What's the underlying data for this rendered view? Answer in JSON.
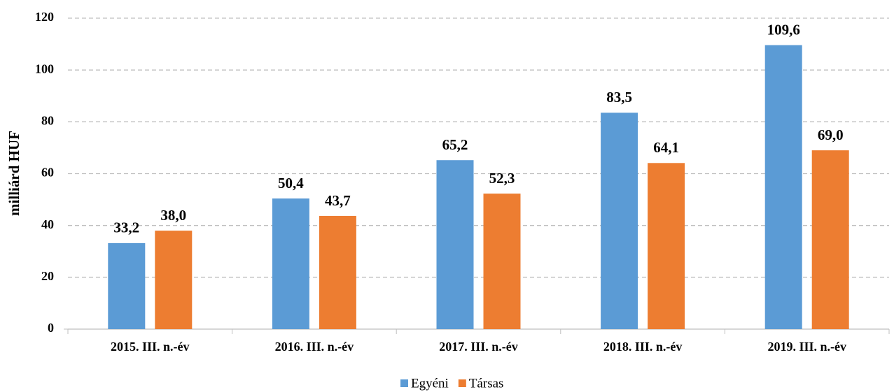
{
  "chart_data": {
    "type": "bar",
    "y_label": "milliárd HUF",
    "categories": [
      "2015. III. n.-év",
      "2016. III. n.-év",
      "2017. III. n.-év",
      "2018. III. n.-év",
      "2019. III. n.-év"
    ],
    "series": [
      {
        "name": "Egyéni",
        "color": "#5b9bd5",
        "values": [
          33.2,
          50.4,
          65.2,
          83.5,
          109.6
        ],
        "value_labels": [
          "33,2",
          "50,4",
          "65,2",
          "83,5",
          "109,6"
        ]
      },
      {
        "name": "Társas",
        "color": "#ed7d31",
        "values": [
          38.0,
          43.7,
          52.3,
          64.1,
          69.0
        ],
        "value_labels": [
          "38,0",
          "43,7",
          "52,3",
          "64,1",
          "69,0"
        ]
      }
    ],
    "ylim": [
      0,
      120
    ],
    "yticks": [
      0,
      20,
      40,
      60,
      80,
      100,
      120
    ],
    "grid": true,
    "legend": "bottom"
  }
}
